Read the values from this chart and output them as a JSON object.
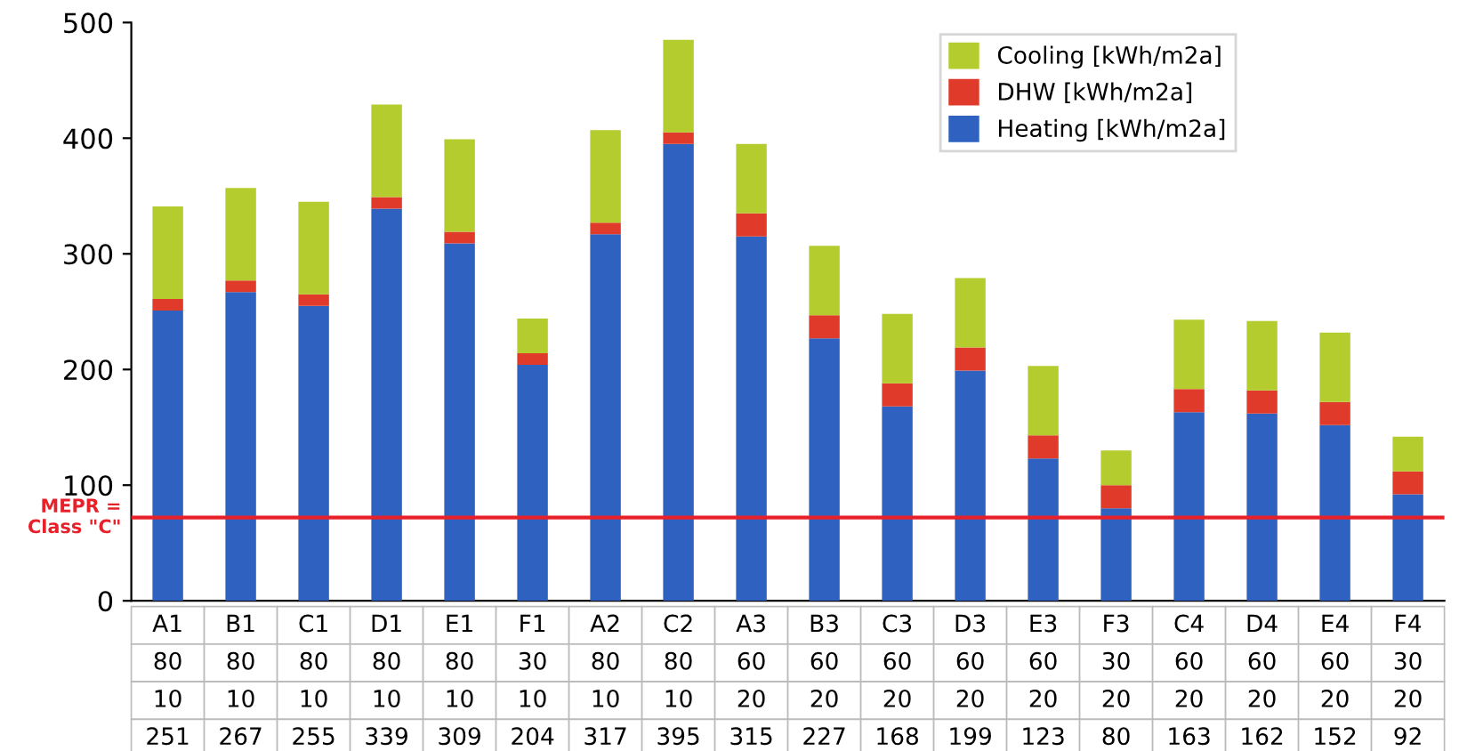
{
  "chart_data": {
    "type": "bar",
    "stacked": true,
    "categories": [
      "A1",
      "B1",
      "C1",
      "D1",
      "E1",
      "F1",
      "A2",
      "C2",
      "A3",
      "B3",
      "C3",
      "D3",
      "E3",
      "F3",
      "C4",
      "D4",
      "E4",
      "F4"
    ],
    "series": [
      {
        "name": "Heating [kWh/m2a]",
        "color": "#2f62c0",
        "values": [
          251,
          267,
          255,
          339,
          309,
          204,
          317,
          395,
          315,
          227,
          168,
          199,
          123,
          80,
          163,
          162,
          152,
          92
        ]
      },
      {
        "name": "DHW [kWh/m2a]",
        "color": "#e03a2a",
        "values": [
          10,
          10,
          10,
          10,
          10,
          10,
          10,
          10,
          20,
          20,
          20,
          20,
          20,
          20,
          20,
          20,
          20,
          20
        ]
      },
      {
        "name": "Cooling [kWh/m2a]",
        "color": "#b5cc2e",
        "values": [
          80,
          80,
          80,
          80,
          80,
          30,
          80,
          80,
          60,
          60,
          60,
          60,
          60,
          30,
          60,
          60,
          60,
          30
        ]
      }
    ],
    "ylim": [
      0,
      500
    ],
    "yticks": [
      0,
      100,
      200,
      300,
      400,
      500
    ],
    "ref_lines": [
      {
        "axis": "y",
        "value": 72,
        "label": "MEPR =\nClass \"C\"",
        "color": "#e8202a"
      }
    ],
    "data_labels": true,
    "legend": "top right"
  }
}
